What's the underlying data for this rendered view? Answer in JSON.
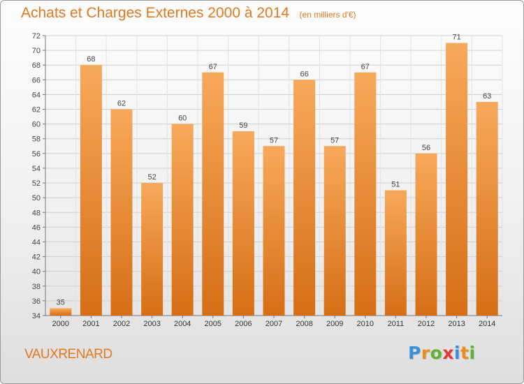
{
  "chart_data": {
    "type": "bar",
    "title": "Achats et Charges Externes 2000 à 2014",
    "unit_note": "(en milliers d'€)",
    "categories": [
      "2000",
      "2001",
      "2002",
      "2003",
      "2004",
      "2005",
      "2006",
      "2007",
      "2008",
      "2009",
      "2010",
      "2011",
      "2012",
      "2013",
      "2014"
    ],
    "values": [
      35,
      68,
      62,
      52,
      60,
      67,
      59,
      57,
      66,
      57,
      67,
      51,
      56,
      71,
      63
    ],
    "ylim": [
      34,
      72
    ],
    "ytick_step": 2,
    "grid": true,
    "bar_color": "#e8822a",
    "bar_highlight_color": "#f7a95a"
  },
  "footer": {
    "place_name": "VAUXRENARD",
    "brand": {
      "letters": [
        "P",
        "r",
        "o",
        "x",
        "i",
        "t",
        "i"
      ],
      "colors": [
        "#3a8fd6",
        "#f08a1c",
        "#5fb233",
        "#e03a3a",
        "#3a8fd6",
        "#f08a1c",
        "#5fb233"
      ]
    }
  }
}
